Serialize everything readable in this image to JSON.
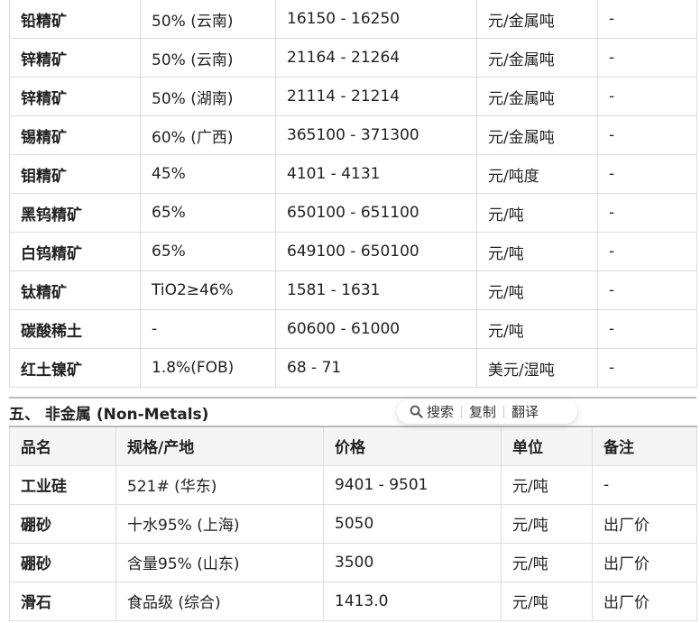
{
  "metals_rows": [
    [
      "铅精矿",
      "50% (云南)",
      "16150 - 16250",
      "元/金属吨",
      "-"
    ],
    [
      "锌精矿",
      "50% (云南)",
      "21164 - 21264",
      "元/金属吨",
      "-"
    ],
    [
      "锌精矿",
      "50% (湖南)",
      "21114 - 21214",
      "元/金属吨",
      "-"
    ],
    [
      "锡精矿",
      "60% (广西)",
      "365100 - 371300",
      "元/金属吨",
      "-"
    ],
    [
      "钼精矿",
      "45%",
      "4101 - 4131",
      "元/吨度",
      "-"
    ],
    [
      "黑钨精矿",
      "65%",
      "650100 - 651100",
      "元/吨",
      "-"
    ],
    [
      "白钨精矿",
      "65%",
      "649100 - 650100",
      "元/吨",
      "-"
    ],
    [
      "钛精矿",
      "TiO2≥46%",
      "1581 - 1631",
      "元/吨",
      "-"
    ],
    [
      "碳酸稀土",
      "-",
      "60600 - 61000",
      "元/吨",
      "-"
    ],
    [
      "红土镍矿",
      "1.8%(FOB)",
      "68 - 71",
      "美元/湿吨",
      "-"
    ]
  ],
  "section_title": "五、 非金属 (Non-Metals)",
  "nonmetals": {
    "headers": [
      "品名",
      "规格/产地",
      "价格",
      "单位",
      "备注"
    ],
    "rows": [
      [
        "工业硅",
        "521# (华东)",
        "9401 - 9501",
        "元/吨",
        "-"
      ],
      [
        "硼砂",
        "十水95% (上海)",
        "5050",
        "元/吨",
        "出厂价"
      ],
      [
        "硼砂",
        "含量95% (山东)",
        "3500",
        "元/吨",
        "出厂价"
      ],
      [
        "滑石",
        "食品级 (综合)",
        "1413.0",
        "元/吨",
        "出厂价"
      ]
    ]
  },
  "popup": {
    "search": "搜索",
    "copy": "复制",
    "translate": "翻译"
  }
}
